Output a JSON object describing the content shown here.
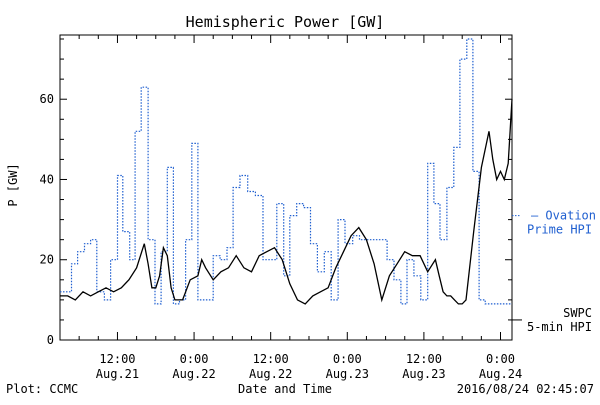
{
  "chart_data": {
    "type": "line",
    "title": "Hemispheric Power [GW]",
    "xlabel": "Date and Time",
    "ylabel": "P [GW]",
    "ylim": [
      0,
      76
    ],
    "xlim": [
      0,
      59
    ],
    "yticks": [
      0,
      20,
      40,
      60
    ],
    "xticks": [
      {
        "x": 7.5,
        "top": "12:00",
        "bottom": "Aug.21"
      },
      {
        "x": 17.5,
        "top": "0:00",
        "bottom": "Aug.22"
      },
      {
        "x": 27.5,
        "top": "12:00",
        "bottom": "Aug.22"
      },
      {
        "x": 37.5,
        "top": "0:00",
        "bottom": "Aug.23"
      },
      {
        "x": 47.5,
        "top": "12:00",
        "bottom": "Aug.23"
      },
      {
        "x": 57.5,
        "top": "0:00",
        "bottom": "Aug.24"
      }
    ],
    "grid": false,
    "series": [
      {
        "name": "Ovation Prime HPI",
        "label_lines": [
          "— Ovation",
          "Prime HPI"
        ],
        "color": "#1f5fd0",
        "style": "dotted-step",
        "x": [
          0,
          0.8,
          1.5,
          2.3,
          3.2,
          4.0,
          4.8,
          5.8,
          6.6,
          7.5,
          8.2,
          9.1,
          9.8,
          10.6,
          11.5,
          12.4,
          13.2,
          14.0,
          14.8,
          15.6,
          16.4,
          17.2,
          18.0,
          19.0,
          20.0,
          20.9,
          21.8,
          22.6,
          23.5,
          24.5,
          25.5,
          26.5,
          27.5,
          28.3,
          29.2,
          30.0,
          30.9,
          31.8,
          32.7,
          33.6,
          34.5,
          35.4,
          36.3,
          37.2,
          38.2,
          39.1,
          40.0,
          40.9,
          41.8,
          42.7,
          43.6,
          44.5,
          45.3,
          46.2,
          47.1,
          48.0,
          48.8,
          49.6,
          50.5,
          51.4,
          52.2,
          53.1,
          53.9,
          54.7,
          55.5,
          56.2,
          57.1,
          58.0,
          59.0
        ],
        "values": [
          12,
          12,
          19,
          22,
          24,
          25,
          12,
          10,
          20,
          41,
          27,
          20,
          52,
          63,
          25,
          9,
          22,
          43,
          9,
          10,
          25,
          49,
          10,
          10,
          21,
          20,
          23,
          38,
          41,
          37,
          36,
          20,
          20,
          34,
          16,
          31,
          34,
          33,
          24,
          17,
          22,
          10,
          30,
          24,
          26,
          25,
          25,
          25,
          25,
          20,
          15,
          9,
          20,
          16,
          10,
          44,
          34,
          25,
          38,
          48,
          70,
          75,
          42,
          10,
          9,
          9,
          9,
          9,
          9
        ]
      },
      {
        "name": "SWPC 5-min HPI",
        "label_lines": [
          "SWPC",
          "5-min HPI"
        ],
        "color": "#000000",
        "style": "solid",
        "x": [
          0,
          1.0,
          2.0,
          3.0,
          4.0,
          5.0,
          6.0,
          7.0,
          8.0,
          9.0,
          10.0,
          11.0,
          11.5,
          12.0,
          12.5,
          13.0,
          13.5,
          14.0,
          14.5,
          15.0,
          15.5,
          16.0,
          17.0,
          18.0,
          18.5,
          19.0,
          20.0,
          21.0,
          22.0,
          23.0,
          24.0,
          25.0,
          26.0,
          27.0,
          28.0,
          29.0,
          30.0,
          31.0,
          32.0,
          33.0,
          34.0,
          35.0,
          36.0,
          37.0,
          38.0,
          39.0,
          40.0,
          41.0,
          42.0,
          43.0,
          44.0,
          45.0,
          46.0,
          47.0,
          48.0,
          49.0,
          49.5,
          50.0,
          50.5,
          51.0,
          51.5,
          52.0,
          52.5,
          53.0,
          54.0,
          55.0,
          56.0,
          56.5,
          57.0,
          57.5,
          58.0,
          58.5,
          59.0
        ],
        "values": [
          11,
          11,
          10,
          12,
          11,
          12,
          13,
          12,
          13,
          15,
          18,
          24,
          19,
          13,
          13,
          16,
          23,
          21,
          13,
          10,
          10,
          10,
          15,
          16,
          20,
          18,
          15,
          17,
          18,
          21,
          18,
          17,
          21,
          22,
          23,
          20,
          14,
          10,
          9,
          11,
          12,
          13,
          18,
          22,
          26,
          28,
          25,
          19,
          10,
          16,
          19,
          22,
          21,
          21,
          17,
          20,
          16,
          12,
          11,
          11,
          10,
          9,
          9,
          10,
          27,
          43,
          52,
          45,
          40,
          42,
          40,
          44,
          60
        ]
      }
    ],
    "annotations": {
      "footer_left": "Plot: CCMC",
      "footer_center": "Date and Time",
      "footer_right": "2016/08/24 02:45:07"
    }
  }
}
